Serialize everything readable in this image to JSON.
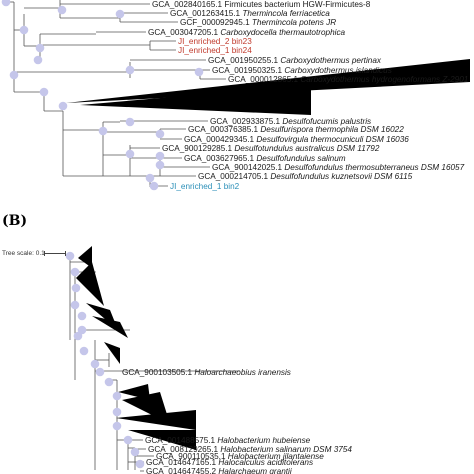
{
  "panel_b": {
    "label": "(B)",
    "scale_label": "Tree scale: 0.1"
  },
  "colors": {
    "line": "#555555",
    "node": "#c5c6ea",
    "red": "#c0392b",
    "blue": "#2b8fb8",
    "text": "#1a1a1a"
  },
  "leaves_a": [
    {
      "acc": "GCA_002840165.1",
      "name": "Firmicutes bacterium HGW-Firmicutes-8",
      "italic": false,
      "color": "text"
    },
    {
      "acc": "GCA_001263415.1",
      "name": "Thermincola ferriacetica",
      "italic": true,
      "color": "text"
    },
    {
      "acc": "GCF_000092945.1",
      "name": "Thermincola potens JR",
      "italic": true,
      "color": "text"
    },
    {
      "acc": "GCA_003047205.1",
      "name": "Carboxydocella thermautotrophica",
      "italic": true,
      "color": "text"
    },
    {
      "acc": "",
      "name": "JI_enriched_2 bin23",
      "italic": false,
      "color": "red"
    },
    {
      "acc": "",
      "name": "JI_enriched_1 bin24",
      "italic": false,
      "color": "red"
    },
    {
      "acc": "GCA_001950255.1",
      "name": "Carboxydothermus pertinax",
      "italic": true,
      "color": "text"
    },
    {
      "acc": "GCA_001950325.1",
      "name": "Carboxydothermus islandicus",
      "italic": true,
      "color": "text"
    },
    {
      "acc": "GCA_000012865.1",
      "name": "Carboxydothermus hydrogenoformans Z-2901",
      "italic": true,
      "color": "text"
    },
    {
      "acc": "GCA_002933875.1",
      "name": "Desulfofucumis palustris",
      "italic": true,
      "color": "text"
    },
    {
      "acc": "GCA_000376385.1",
      "name": "Desulfurispora thermophila DSM 16022",
      "italic": true,
      "color": "text"
    },
    {
      "acc": "GCA_000429345.1",
      "name": "Desulfovirgula thermocuniculi DSM 16036",
      "italic": true,
      "color": "text"
    },
    {
      "acc": "GCA_900129285.1",
      "name": "Desulfotundulus australicus DSM 11792",
      "italic": true,
      "color": "text"
    },
    {
      "acc": "GCA_003627965.1",
      "name": "Desulfofundulus salinum",
      "italic": true,
      "color": "text"
    },
    {
      "acc": "GCA_900142025.1",
      "name": "Desulfofundulus thermosubterraneus DSM 16057",
      "italic": true,
      "color": "text"
    },
    {
      "acc": "GCA_000214705.1",
      "name": "Desulfofundulus kuznetsovii DSM 6115",
      "italic": true,
      "color": "text"
    },
    {
      "acc": "",
      "name": "JI_enriched_1 bin2",
      "italic": false,
      "color": "blue"
    }
  ],
  "leaves_b": [
    {
      "acc": "GCA_900103505.1",
      "name": "Haloarchaeobius iranensis",
      "italic": true,
      "color": "text"
    },
    {
      "acc": "GCA_001488575.1",
      "name": "Halobacterium hubeiense",
      "italic": true,
      "color": "text"
    },
    {
      "acc": "GCA_008129265.1",
      "name": "Halobacterium salinarum DSM 3754",
      "italic": true,
      "color": "text"
    },
    {
      "acc": "GCA_900110535.1",
      "name": "Halobacterium jilantaiense",
      "italic": true,
      "color": "text"
    },
    {
      "acc": "GCA_014647165.1",
      "name": "Halocalculus aciditolerans",
      "italic": true,
      "color": "text"
    },
    {
      "acc": "GCA_014647455.2",
      "name": "Halarchaeum grantii",
      "italic": true,
      "color": "text"
    }
  ]
}
